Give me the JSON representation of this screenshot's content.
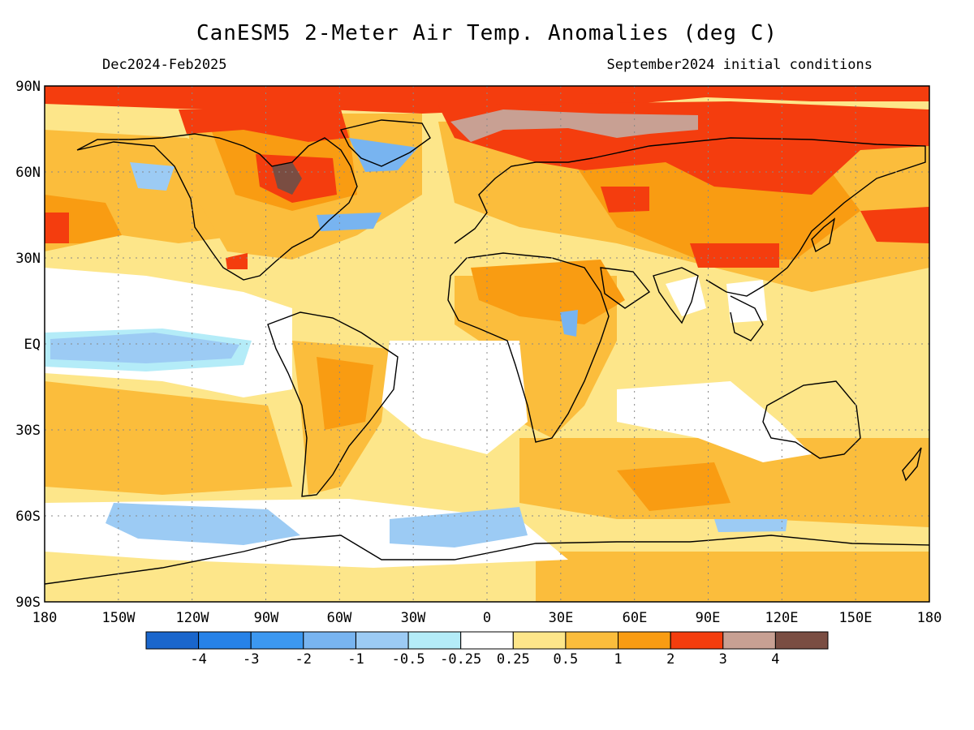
{
  "header": {
    "title": "CanESM5 2-Meter Air Temp. Anomalies (deg C)",
    "period": "Dec2024-Feb2025",
    "init": "September2024 initial conditions"
  },
  "axes": {
    "lat_labels": [
      "90N",
      "60N",
      "30N",
      "EQ",
      "30S",
      "60S",
      "90S"
    ],
    "lon_labels": [
      "180",
      "150W",
      "120W",
      "90W",
      "60W",
      "30W",
      "0",
      "30E",
      "60E",
      "90E",
      "120E",
      "150E",
      "180"
    ]
  },
  "colorbar": {
    "colors": [
      "#1a66cc",
      "#2682e8",
      "#3c98f0",
      "#78b4f0",
      "#9ccbf4",
      "#b4ecf8",
      "#ffffff",
      "#fde68a",
      "#fbbd3c",
      "#f99c12",
      "#f43d0e",
      "#c8a093",
      "#7a4d42"
    ],
    "labels": [
      "-4",
      "-3",
      "-2",
      "-1",
      "-0.5",
      "-0.25",
      "0.25",
      "0.5",
      "1",
      "2",
      "3",
      "4"
    ]
  },
  "palette": {
    "warm_light": "#fde68a",
    "warm_mid": "#fbbd3c",
    "warm": "#f99c12",
    "hot": "#f43d0e",
    "very_hot": "#c8a093",
    "extreme": "#7a4d42",
    "cool_light": "#b4ecf8",
    "cool": "#9ccbf4",
    "cool_mid": "#78b4f0"
  }
}
